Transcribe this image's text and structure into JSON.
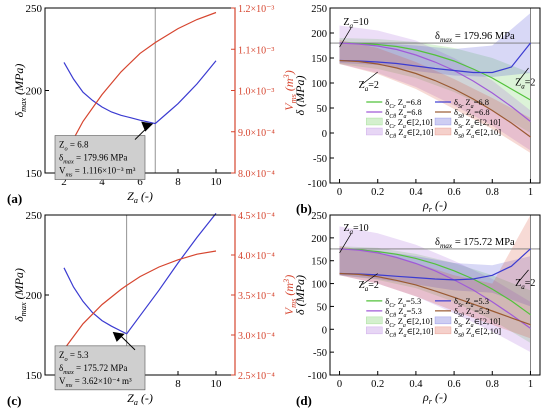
{
  "figure": {
    "colors": {
      "axis": "#000000",
      "red_axis": "#d6452f",
      "blue": "#3b3bd1",
      "red": "#d6452f",
      "green": "#52c23a",
      "purple": "#a05ad8",
      "brown": "#9a5a32",
      "gray": "#777777",
      "annot_bg": "#cfcfcf"
    }
  },
  "chart_data": [
    {
      "id": "a",
      "panel_label": "(a)",
      "type": "line",
      "xlabel": "Z_a (-)",
      "ylabel_left": "δ_max (MPa)",
      "ylabel_right": "V_ms (m^3)",
      "xlim": [
        1,
        11
      ],
      "ylim_left": [
        150,
        250
      ],
      "ylim_right": [
        0.0008,
        0.0012
      ],
      "xticks": [
        2,
        4,
        6,
        8,
        10
      ],
      "yticks_left": [
        150,
        200,
        250
      ],
      "yticks_right": [
        0.0008,
        0.0009,
        0.001,
        0.0011,
        0.0012
      ],
      "ytick_labels_right": [
        "8.0×10⁻⁴",
        "9.0×10⁻⁴",
        "1.0×10⁻³",
        "1.1×10⁻³",
        "1.2×10⁻³"
      ],
      "vline_x": 6.8,
      "series": [
        {
          "axis": "left",
          "color": "#3b3bd1",
          "x": [
            2,
            2.5,
            3,
            3.5,
            4,
            4.5,
            5,
            5.5,
            6,
            6.4,
            6.8,
            7.5,
            8,
            8.5,
            9,
            9.5,
            10
          ],
          "y": [
            217,
            207,
            199,
            194,
            190,
            187,
            185,
            183.5,
            182,
            181,
            179.96,
            187,
            192,
            198,
            204,
            211,
            218
          ]
        },
        {
          "axis": "right",
          "color": "#d6452f",
          "x": [
            2,
            3,
            4,
            5,
            6,
            6.8,
            7,
            8,
            9,
            10
          ],
          "y": [
            0.00084,
            0.000925,
            0.00099,
            0.001045,
            0.00109,
            0.001116,
            0.001122,
            0.00115,
            0.001172,
            0.001189
          ]
        }
      ],
      "annotation": {
        "x": 6.8,
        "y": 179.96,
        "lines": [
          "Z_o = 6.8",
          "δ_max = 179.96 MPa",
          "V_ms = 1.116×10⁻³ m³"
        ]
      }
    },
    {
      "id": "b",
      "panel_label": "(b)",
      "type": "line",
      "xlabel": "ρ_r (-)",
      "ylabel": "δ (MPa)",
      "xlim": [
        -0.05,
        1.05
      ],
      "ylim": [
        -100,
        250
      ],
      "xticks": [
        0.0,
        0.2,
        0.4,
        0.6,
        0.8,
        1.0
      ],
      "yticks": [
        -100,
        -50,
        0,
        50,
        100,
        150,
        200,
        250
      ],
      "hline_y": 179.96,
      "hline_label": "δ_max = 179.96 MPa",
      "vline_x": 1.0,
      "text_labels": [
        "Z_a=10",
        "Z_a=2",
        "Z_a=2"
      ],
      "series": [
        {
          "name": "δ_Cr Z_a=6.8",
          "color": "#52c23a",
          "x": [
            0,
            0.1,
            0.2,
            0.3,
            0.4,
            0.5,
            0.6,
            0.7,
            0.8,
            0.9,
            1.0
          ],
          "y": [
            180,
            179,
            177,
            173,
            166,
            156,
            144,
            128,
            110,
            88,
            66
          ]
        },
        {
          "name": "δ_Cθ Z_a=6.8",
          "color": "#a05ad8",
          "x": [
            0,
            0.1,
            0.2,
            0.3,
            0.4,
            0.5,
            0.6,
            0.7,
            0.8,
            0.9,
            1.0
          ],
          "y": [
            180,
            178,
            174,
            167,
            156,
            142,
            125,
            104,
            80,
            53,
            23
          ]
        },
        {
          "name": "δ_Sr Z_a=6.8",
          "color": "#3b3bd1",
          "x": [
            0,
            0.1,
            0.2,
            0.3,
            0.4,
            0.5,
            0.6,
            0.7,
            0.8,
            0.9,
            1.0
          ],
          "y": [
            145,
            144,
            142,
            139,
            134,
            129,
            125,
            121,
            121,
            132,
            180
          ]
        },
        {
          "name": "δ_Sθ Z_a=6.8",
          "color": "#9a5a32",
          "x": [
            0,
            0.1,
            0.2,
            0.3,
            0.4,
            0.5,
            0.6,
            0.7,
            0.8,
            0.9,
            1.0
          ],
          "y": [
            145,
            143,
            138,
            130,
            119,
            105,
            88,
            68,
            45,
            20,
            -8
          ]
        },
        {
          "name": "δ_Cr Z_a∈[2,10]",
          "color": "#52c23a",
          "band": true,
          "x": [
            0,
            0.2,
            0.4,
            0.6,
            0.8,
            1.0
          ],
          "y_low": [
            138,
            128,
            110,
            82,
            45,
            0
          ],
          "y_high": [
            190,
            188,
            182,
            170,
            150,
            120
          ]
        },
        {
          "name": "δ_Cθ Z_a∈[2,10]",
          "color": "#a05ad8",
          "band": true,
          "x": [
            0,
            0.2,
            0.4,
            0.6,
            0.8,
            1.0
          ],
          "y_low": [
            138,
            120,
            92,
            55,
            15,
            -35
          ],
          "y_high": [
            215,
            205,
            185,
            150,
            105,
            45
          ]
        },
        {
          "name": "δ_Sr Z_a∈[2,10]",
          "color": "#3b3bd1",
          "band": true,
          "x": [
            0,
            0.2,
            0.4,
            0.6,
            0.8,
            1.0
          ],
          "y_low": [
            140,
            136,
            124,
            115,
            112,
            120
          ],
          "y_high": [
            182,
            180,
            175,
            168,
            175,
            240
          ]
        },
        {
          "name": "δ_Sθ Z_a∈[2,10]",
          "color": "#d6452f",
          "band": true,
          "x": [
            0,
            0.2,
            0.4,
            0.6,
            0.8,
            1.0
          ],
          "y_low": [
            138,
            118,
            88,
            48,
            8,
            -40
          ],
          "y_high": [
            186,
            170,
            142,
            108,
            70,
            30
          ]
        }
      ]
    },
    {
      "id": "c",
      "panel_label": "(c)",
      "type": "line",
      "xlabel": "Z_a (-)",
      "ylabel_left": "δ_max (MPa)",
      "ylabel_right": "V_ms (m^3)",
      "xlim": [
        1,
        11
      ],
      "ylim_left": [
        150,
        250
      ],
      "ylim_right": [
        0.00025,
        0.00045
      ],
      "xticks": [
        2,
        4,
        6,
        8,
        10
      ],
      "yticks_left": [
        150,
        200,
        250
      ],
      "yticks_right": [
        0.00025,
        0.0003,
        0.00035,
        0.0004,
        0.00045
      ],
      "ytick_labels_right": [
        "2.5×10⁻⁴",
        "3.0×10⁻⁴",
        "3.5×10⁻⁴",
        "4.0×10⁻⁴",
        "4.5×10⁻⁴"
      ],
      "vline_x": 5.3,
      "series": [
        {
          "axis": "left",
          "color": "#3b3bd1",
          "x": [
            2,
            2.5,
            3,
            3.5,
            4,
            4.5,
            5,
            5.3,
            6,
            7,
            8,
            9,
            10
          ],
          "y": [
            217,
            205,
            196,
            189,
            184,
            180.5,
            177.5,
            175.72,
            187,
            203,
            220,
            236,
            251
          ]
        },
        {
          "axis": "right",
          "color": "#d6452f",
          "x": [
            2,
            3,
            4,
            5,
            5.3,
            6,
            7,
            8,
            9,
            10
          ],
          "y": [
            0.000282,
            0.000314,
            0.000338,
            0.000357,
            0.000362,
            0.000373,
            0.000385,
            0.000394,
            0.000401,
            0.000405
          ]
        }
      ],
      "annotation": {
        "x": 5.3,
        "y": 175.72,
        "lines": [
          "Z_o = 5.3",
          "δ_max = 175.72 MPa",
          "V_ms = 3.62×10⁻⁴ m³"
        ]
      }
    },
    {
      "id": "d",
      "panel_label": "(d)",
      "type": "line",
      "xlabel": "ρ_r (-)",
      "ylabel": "δ (MPa)",
      "xlim": [
        -0.05,
        1.05
      ],
      "ylim": [
        -100,
        250
      ],
      "xticks": [
        0.0,
        0.2,
        0.4,
        0.6,
        0.8,
        1.0
      ],
      "yticks": [
        -100,
        -50,
        0,
        50,
        100,
        150,
        200,
        250
      ],
      "hline_y": 175.72,
      "hline_label": "δ_max = 175.72 MPa",
      "vline_x": 1.0,
      "text_labels": [
        "Z_a=10",
        "Z_a=2",
        "Z_a=2"
      ],
      "series": [
        {
          "name": "δ_Cr Z_a=5.3",
          "color": "#52c23a",
          "x": [
            0,
            0.1,
            0.2,
            0.3,
            0.4,
            0.5,
            0.6,
            0.7,
            0.8,
            0.9,
            1.0
          ],
          "y": [
            176,
            174,
            170,
            164,
            155,
            143,
            128,
            110,
            88,
            62,
            32
          ]
        },
        {
          "name": "δ_Cθ Z_a=5.3",
          "color": "#a05ad8",
          "x": [
            0,
            0.1,
            0.2,
            0.3,
            0.4,
            0.5,
            0.6,
            0.7,
            0.8,
            0.9,
            1.0
          ],
          "y": [
            176,
            173,
            167,
            157,
            144,
            128,
            108,
            86,
            60,
            32,
            2
          ]
        },
        {
          "name": "δ_Sr Z_a=5.3",
          "color": "#3b3bd1",
          "x": [
            0,
            0.1,
            0.2,
            0.3,
            0.4,
            0.5,
            0.6,
            0.7,
            0.8,
            0.9,
            1.0
          ],
          "y": [
            122,
            121,
            119,
            116,
            113,
            110,
            108,
            110,
            118,
            138,
            176
          ]
        },
        {
          "name": "δ_Sθ Z_a=5.3",
          "color": "#9a5a32",
          "x": [
            0,
            0.1,
            0.2,
            0.3,
            0.4,
            0.5,
            0.6,
            0.7,
            0.8,
            0.9,
            1.0
          ],
          "y": [
            122,
            120,
            115,
            107,
            97,
            84,
            70,
            55,
            40,
            25,
            10
          ]
        },
        {
          "name": "δ_Cr Z_a∈[2,10]",
          "color": "#52c23a",
          "band": true,
          "x": [
            0,
            0.2,
            0.4,
            0.6,
            0.8,
            1.0
          ],
          "y_low": [
            118,
            108,
            90,
            60,
            20,
            -30
          ],
          "y_high": [
            182,
            178,
            165,
            145,
            118,
            85
          ]
        },
        {
          "name": "δ_Cθ Z_a∈[2,10]",
          "color": "#a05ad8",
          "band": true,
          "x": [
            0,
            0.2,
            0.4,
            0.6,
            0.8,
            1.0
          ],
          "y_low": [
            118,
            100,
            72,
            35,
            -5,
            -50
          ],
          "y_high": [
            225,
            210,
            185,
            150,
            110,
            60
          ]
        },
        {
          "name": "δ_Sr Z_a∈[2,10]",
          "color": "#3b3bd1",
          "band": true,
          "x": [
            0,
            0.2,
            0.4,
            0.6,
            0.8,
            1.0
          ],
          "y_low": [
            118,
            110,
            98,
            85,
            80,
            50
          ],
          "y_high": [
            178,
            172,
            160,
            145,
            140,
            160
          ]
        },
        {
          "name": "δ_Sθ Z_a∈[2,10]",
          "color": "#d6452f",
          "band": true,
          "x": [
            0,
            0.2,
            0.4,
            0.6,
            0.8,
            1.0
          ],
          "y_low": [
            118,
            100,
            72,
            40,
            10,
            -20
          ],
          "y_high": [
            182,
            168,
            145,
            118,
            100,
            250
          ]
        }
      ]
    }
  ]
}
